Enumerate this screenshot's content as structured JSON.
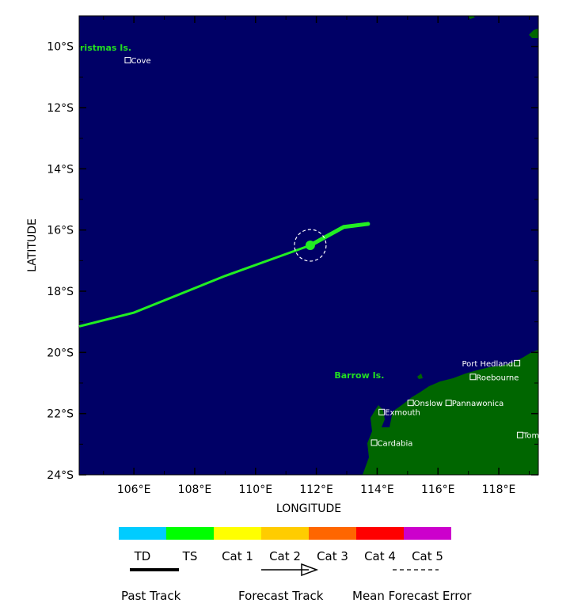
{
  "map": {
    "xlabel": "LONGITUDE",
    "ylabel": "LATITUDE",
    "lon_ticks": [
      "106°E",
      "108°E",
      "110°E",
      "112°E",
      "114°E",
      "116°E",
      "118°E"
    ],
    "lat_ticks": [
      "10°S",
      "12°S",
      "14°S",
      "16°S",
      "18°S",
      "20°S",
      "22°S",
      "24°S"
    ],
    "lon_range": [
      104.2,
      119.3
    ],
    "lat_range": [
      -24.0,
      -9.0
    ],
    "ocean_color": "#000066",
    "land_color": "#006600",
    "track_color": "#22ee22",
    "places": [
      {
        "name": "Cove",
        "lon": 105.8,
        "lat": -10.45
      },
      {
        "name": "Port Hedland",
        "lon": 118.6,
        "lat": -20.35
      },
      {
        "name": "Roebourne",
        "lon": 117.15,
        "lat": -20.8
      },
      {
        "name": "Onslow",
        "lon": 115.1,
        "lat": -21.65
      },
      {
        "name": "Exmouth",
        "lon": 114.15,
        "lat": -21.95
      },
      {
        "name": "Pannawonica",
        "lon": 116.35,
        "lat": -21.65
      },
      {
        "name": "Tom Price",
        "lon": 118.7,
        "lat": -22.7
      },
      {
        "name": "Cardabia",
        "lon": 113.9,
        "lat": -22.95
      }
    ],
    "islands": [
      {
        "name": "ristmas Is.",
        "lon": 104.5,
        "lat": -10.0
      },
      {
        "name": "Barrow Is.",
        "lon": 113.4,
        "lat": -20.95
      }
    ],
    "track": {
      "points": [
        [
          104.2,
          -19.15
        ],
        [
          106.0,
          -18.7
        ],
        [
          109.0,
          -17.5
        ],
        [
          111.8,
          -16.5
        ],
        [
          112.9,
          -15.9
        ],
        [
          113.7,
          -15.8
        ]
      ],
      "current_position": {
        "lon": 111.8,
        "lat": -16.5
      }
    }
  },
  "legend": {
    "categories": [
      {
        "label": "TD",
        "color": "#00ccff"
      },
      {
        "label": "TS",
        "color": "#00ff00"
      },
      {
        "label": "Cat 1",
        "color": "#ffff00"
      },
      {
        "label": "Cat 2",
        "color": "#ffcc00"
      },
      {
        "label": "Cat 3",
        "color": "#ff6600"
      },
      {
        "label": "Cat 4",
        "color": "#ff0000"
      },
      {
        "label": "Cat 5",
        "color": "#cc00cc"
      }
    ],
    "past_track": "Past Track",
    "forecast_track": "Forecast Track",
    "mean_error": "Mean Forecast Error"
  }
}
